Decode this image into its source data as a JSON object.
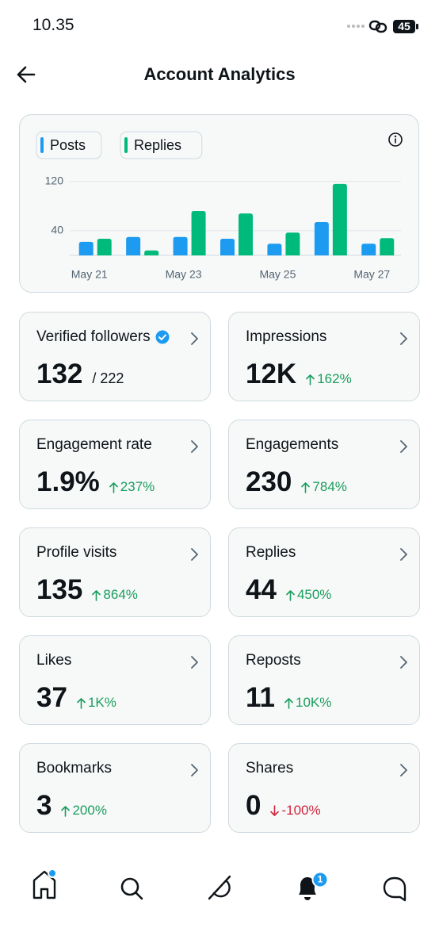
{
  "status_bar": {
    "time": "10.35",
    "battery": "45"
  },
  "header": {
    "title": "Account Analytics"
  },
  "chart_data": {
    "type": "bar",
    "categories": [
      "May 21",
      null,
      "May 23",
      null,
      "May 25",
      null,
      "May 27"
    ],
    "series": [
      {
        "name": "Posts",
        "color": "#1d9bf0",
        "values": [
          22,
          30,
          30,
          27,
          19,
          54,
          19
        ]
      },
      {
        "name": "Replies",
        "color": "#00ba7c",
        "values": [
          27,
          8,
          72,
          68,
          37,
          116,
          28
        ]
      }
    ],
    "ylim": [
      0,
      130
    ],
    "yticks": [
      40,
      120
    ],
    "grid": true
  },
  "cards": [
    {
      "label": "Verified followers",
      "value": "132",
      "total": "/ 222",
      "verified": true
    },
    {
      "label": "Impressions",
      "value": "12K",
      "change": "162%",
      "trend": "up"
    },
    {
      "label": "Engagement rate",
      "value": "1.9%",
      "change": "237%",
      "trend": "up"
    },
    {
      "label": "Engagements",
      "value": "230",
      "change": "784%",
      "trend": "up"
    },
    {
      "label": "Profile visits",
      "value": "135",
      "change": "864%",
      "trend": "up"
    },
    {
      "label": "Replies",
      "value": "44",
      "change": "450%",
      "trend": "up"
    },
    {
      "label": "Likes",
      "value": "37",
      "change": "1K%",
      "trend": "up"
    },
    {
      "label": "Reposts",
      "value": "11",
      "change": "10K%",
      "trend": "up"
    },
    {
      "label": "Bookmarks",
      "value": "3",
      "change": "200%",
      "trend": "up"
    },
    {
      "label": "Shares",
      "value": "0",
      "change": "-100%",
      "trend": "down"
    }
  ],
  "nav": {
    "notification_badge": "1"
  }
}
